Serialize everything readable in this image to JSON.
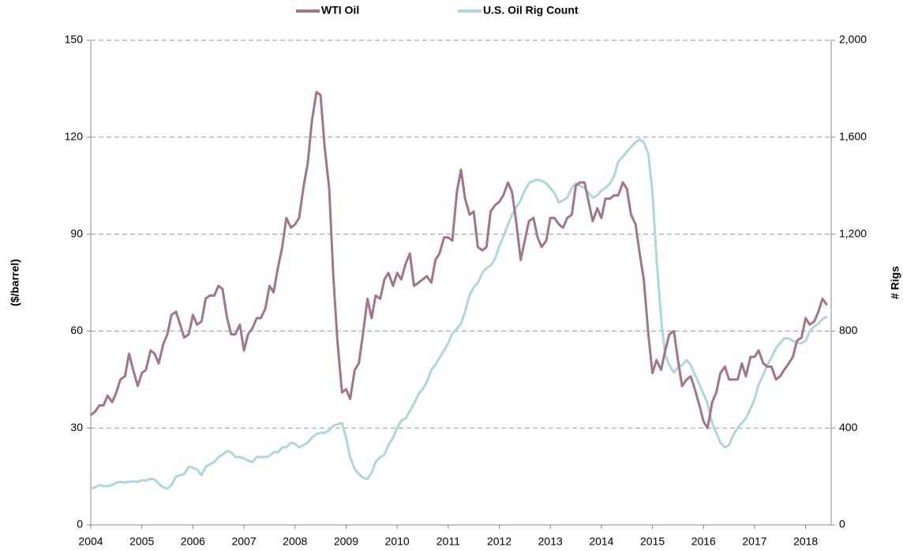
{
  "chart_data": {
    "type": "line",
    "y_label": "($/barrel)",
    "y2_label": "# Rigs",
    "xlim": [
      2004,
      2018.5
    ],
    "xticks": [
      2004,
      2005,
      2006,
      2007,
      2008,
      2009,
      2010,
      2011,
      2012,
      2013,
      2014,
      2015,
      2016,
      2017,
      2018
    ],
    "ylim": [
      0,
      150
    ],
    "yticks": [
      0,
      30,
      60,
      90,
      120,
      150
    ],
    "y2lim": [
      0,
      2000
    ],
    "y2ticks": [
      0,
      400,
      800,
      {
        "value": 1200,
        "label": "1,200"
      },
      {
        "value": 1600,
        "label": "1,600"
      },
      {
        "value": 2000,
        "label": "2,000"
      }
    ],
    "grid": true,
    "legend": "top",
    "x": [
      2004,
      2004.08,
      2004.17,
      2004.25,
      2004.33,
      2004.42,
      2004.5,
      2004.58,
      2004.67,
      2004.75,
      2004.83,
      2004.92,
      2005,
      2005.08,
      2005.17,
      2005.25,
      2005.33,
      2005.42,
      2005.5,
      2005.58,
      2005.67,
      2005.75,
      2005.83,
      2005.92,
      2006,
      2006.08,
      2006.17,
      2006.25,
      2006.33,
      2006.42,
      2006.5,
      2006.58,
      2006.67,
      2006.75,
      2006.83,
      2006.92,
      2007,
      2007.08,
      2007.17,
      2007.25,
      2007.33,
      2007.42,
      2007.5,
      2007.58,
      2007.67,
      2007.75,
      2007.83,
      2007.92,
      2008,
      2008.08,
      2008.17,
      2008.25,
      2008.33,
      2008.42,
      2008.5,
      2008.58,
      2008.67,
      2008.75,
      2008.83,
      2008.92,
      2009,
      2009.08,
      2009.17,
      2009.25,
      2009.33,
      2009.42,
      2009.5,
      2009.58,
      2009.67,
      2009.75,
      2009.83,
      2009.92,
      2010,
      2010.08,
      2010.17,
      2010.25,
      2010.33,
      2010.42,
      2010.5,
      2010.58,
      2010.67,
      2010.75,
      2010.83,
      2010.92,
      2011,
      2011.08,
      2011.17,
      2011.25,
      2011.33,
      2011.42,
      2011.5,
      2011.58,
      2011.67,
      2011.75,
      2011.83,
      2011.92,
      2012,
      2012.08,
      2012.17,
      2012.25,
      2012.33,
      2012.42,
      2012.5,
      2012.58,
      2012.67,
      2012.75,
      2012.83,
      2012.92,
      2013,
      2013.08,
      2013.17,
      2013.25,
      2013.33,
      2013.42,
      2013.5,
      2013.58,
      2013.67,
      2013.75,
      2013.83,
      2013.92,
      2014,
      2014.08,
      2014.17,
      2014.25,
      2014.33,
      2014.42,
      2014.5,
      2014.58,
      2014.67,
      2014.75,
      2014.83,
      2014.92,
      2015,
      2015.08,
      2015.17,
      2015.25,
      2015.33,
      2015.42,
      2015.5,
      2015.58,
      2015.67,
      2015.75,
      2015.83,
      2015.92,
      2016,
      2016.08,
      2016.17,
      2016.25,
      2016.33,
      2016.42,
      2016.5,
      2016.58,
      2016.67,
      2016.75,
      2016.83,
      2016.92,
      2017,
      2017.08,
      2017.17,
      2017.25,
      2017.33,
      2017.42,
      2017.5,
      2017.58,
      2017.67,
      2017.75,
      2017.83,
      2017.92,
      2018,
      2018.08,
      2018.17,
      2018.25,
      2018.33,
      2018.42
    ],
    "series": [
      {
        "name": "WTI Oil",
        "color": "#a0758d",
        "values": [
          34,
          35,
          37,
          37,
          40,
          38,
          41,
          45,
          46,
          53,
          48,
          43,
          47,
          48,
          54,
          53,
          50,
          56,
          59,
          65,
          66,
          62,
          58,
          59,
          65,
          62,
          63,
          70,
          71,
          71,
          74,
          73,
          64,
          59,
          59,
          62,
          54,
          59,
          61,
          64,
          64,
          67,
          74,
          72,
          80,
          86,
          95,
          92,
          93,
          95,
          105,
          112,
          125,
          134,
          133,
          117,
          104,
          77,
          57,
          41,
          42,
          39,
          48,
          50,
          59,
          70,
          64,
          71,
          70,
          76,
          78,
          74,
          78,
          76,
          81,
          84,
          74,
          75,
          76,
          77,
          75,
          82,
          84,
          89,
          89,
          88,
          103,
          110,
          101,
          96,
          97,
          86,
          85,
          86,
          97,
          99,
          100,
          102,
          106,
          103,
          94,
          82,
          88,
          94,
          95,
          89,
          86,
          88,
          95,
          95,
          93,
          92,
          95,
          96,
          105,
          106,
          106,
          100,
          94,
          98,
          95,
          101,
          101,
          102,
          102,
          106,
          104,
          96,
          93,
          84,
          76,
          59,
          47,
          51,
          48,
          54,
          59,
          60,
          51,
          43,
          45,
          46,
          42,
          37,
          32,
          30,
          38,
          41,
          47,
          49,
          45,
          45,
          45,
          50,
          46,
          52,
          52,
          54,
          50,
          49,
          49,
          45,
          46,
          48,
          50,
          52,
          57,
          58,
          64,
          62,
          63,
          66,
          70,
          68
        ]
      },
      {
        "name": "U.S. Oil Rig Count",
        "color": "#aed6dc",
        "axis": "y2",
        "values": [
          150,
          155,
          165,
          160,
          160,
          165,
          175,
          178,
          175,
          178,
          180,
          178,
          185,
          183,
          190,
          188,
          170,
          155,
          150,
          165,
          200,
          205,
          210,
          240,
          235,
          230,
          205,
          240,
          250,
          260,
          280,
          290,
          305,
          300,
          280,
          280,
          275,
          265,
          260,
          280,
          280,
          280,
          285,
          300,
          300,
          320,
          320,
          340,
          335,
          320,
          330,
          340,
          360,
          375,
          380,
          380,
          390,
          410,
          415,
          420,
          360,
          280,
          230,
          210,
          195,
          190,
          215,
          260,
          280,
          290,
          330,
          360,
          400,
          430,
          440,
          470,
          500,
          540,
          560,
          590,
          640,
          660,
          690,
          720,
          750,
          790,
          810,
          830,
          880,
          950,
          980,
          1000,
          1040,
          1060,
          1070,
          1100,
          1150,
          1190,
          1240,
          1280,
          1310,
          1340,
          1380,
          1410,
          1420,
          1425,
          1420,
          1410,
          1390,
          1370,
          1330,
          1340,
          1350,
          1390,
          1410,
          1400,
          1390,
          1370,
          1350,
          1360,
          1380,
          1390,
          1410,
          1440,
          1500,
          1520,
          1540,
          1560,
          1580,
          1590,
          1580,
          1530,
          1370,
          1100,
          850,
          700,
          660,
          630,
          650,
          660,
          680,
          660,
          620,
          580,
          540,
          500,
          420,
          380,
          340,
          320,
          330,
          370,
          400,
          420,
          440,
          480,
          520,
          580,
          620,
          660,
          690,
          730,
          750,
          770,
          770,
          760,
          750,
          750,
          760,
          800,
          820,
          830,
          850,
          860
        ]
      }
    ]
  }
}
